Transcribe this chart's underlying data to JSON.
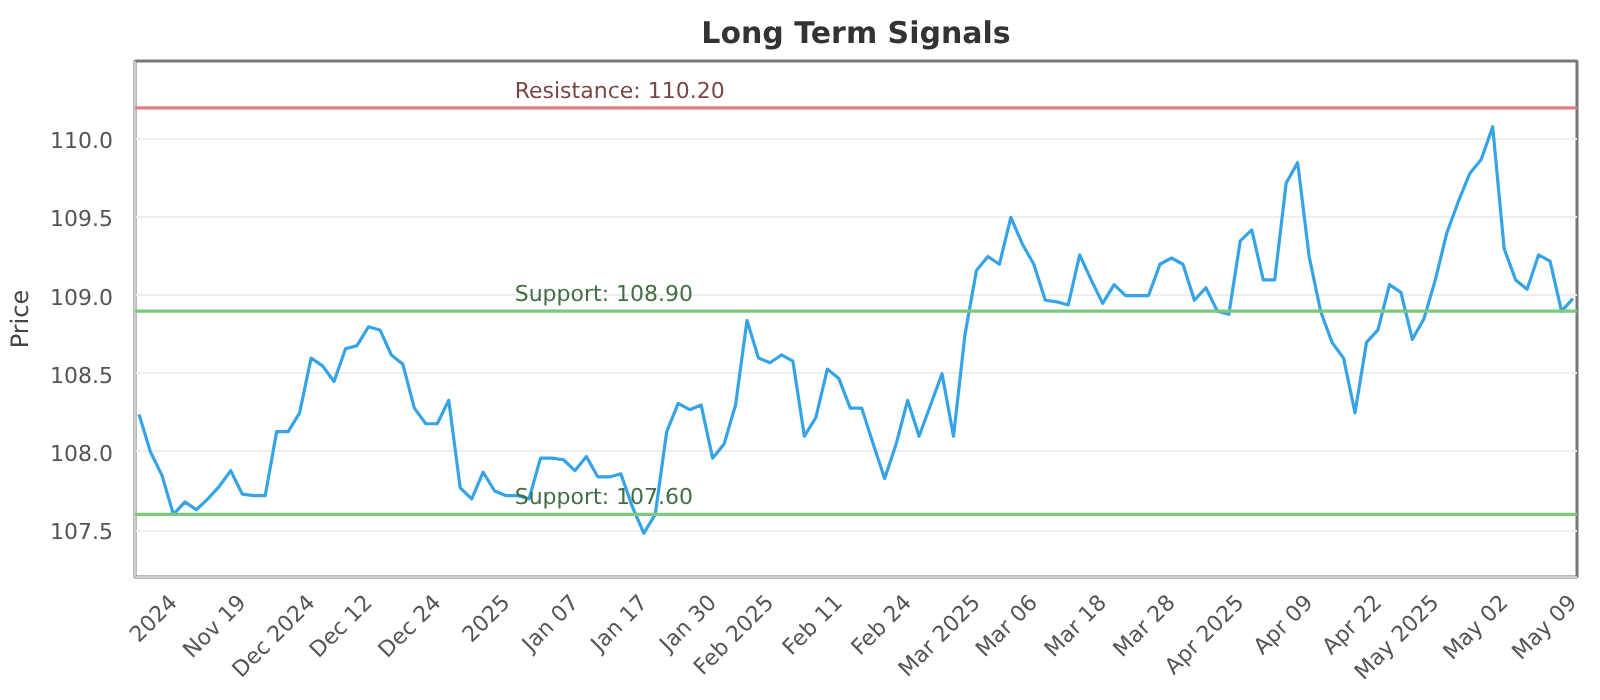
{
  "chart_data": {
    "type": "line",
    "title": "Long Term Signals",
    "ylabel": "Price",
    "categories": [
      null,
      null,
      null,
      "2024",
      null,
      null,
      null,
      null,
      null,
      "Nov 19",
      null,
      null,
      null,
      null,
      null,
      "Dec 2024",
      null,
      null,
      null,
      null,
      "Dec 12",
      null,
      null,
      null,
      null,
      null,
      "Dec 24",
      null,
      null,
      null,
      null,
      null,
      "2025",
      null,
      null,
      null,
      null,
      null,
      "Jan 07",
      null,
      null,
      null,
      null,
      null,
      "Jan 17",
      null,
      null,
      null,
      null,
      null,
      "Jan 30",
      null,
      null,
      null,
      null,
      "Feb 2025",
      null,
      null,
      null,
      null,
      null,
      "Feb 11",
      null,
      null,
      null,
      null,
      null,
      "Feb 24",
      null,
      null,
      null,
      null,
      null,
      "Mar 2025",
      null,
      null,
      null,
      null,
      "Mar 06",
      null,
      null,
      null,
      null,
      null,
      "Mar 18",
      null,
      null,
      null,
      null,
      null,
      "Mar 28",
      null,
      null,
      null,
      null,
      null,
      "Apr 2025",
      null,
      null,
      null,
      null,
      null,
      "Apr 09",
      null,
      null,
      null,
      null,
      null,
      "Apr 22",
      null,
      null,
      null,
      null,
      "May 2025",
      null,
      null,
      null,
      null,
      null,
      "May 02",
      null,
      null,
      null,
      null,
      null,
      "May 09"
    ],
    "series": [
      {
        "color": "#35a3e6",
        "values": [
          108.24,
          108.0,
          107.85,
          107.6,
          107.68,
          107.63,
          107.7,
          107.78,
          107.88,
          107.73,
          107.72,
          107.72,
          108.13,
          108.13,
          108.25,
          108.6,
          108.55,
          108.45,
          108.66,
          108.68,
          108.8,
          108.78,
          108.62,
          108.56,
          108.28,
          108.18,
          108.18,
          108.33,
          107.77,
          107.7,
          107.87,
          107.75,
          107.72,
          107.72,
          107.7,
          107.96,
          107.96,
          107.95,
          107.88,
          107.97,
          107.84,
          107.84,
          107.86,
          107.65,
          107.48,
          107.6,
          108.13,
          108.31,
          108.27,
          108.3,
          107.96,
          108.05,
          108.3,
          108.84,
          108.6,
          108.57,
          108.62,
          108.58,
          108.1,
          108.22,
          108.53,
          108.47,
          108.28,
          108.28,
          108.05,
          107.83,
          108.05,
          108.33,
          108.1,
          108.3,
          108.5,
          108.1,
          108.75,
          109.16,
          109.25,
          109.2,
          109.5,
          109.33,
          109.2,
          108.97,
          108.96,
          108.94,
          109.26,
          109.1,
          108.95,
          109.07,
          109.0,
          109.0,
          109.0,
          109.2,
          109.24,
          109.2,
          108.97,
          109.05,
          108.9,
          108.88,
          109.35,
          109.42,
          109.1,
          109.1,
          109.72,
          109.85,
          109.25,
          108.9,
          108.7,
          108.6,
          108.25,
          108.7,
          108.78,
          109.07,
          109.02,
          108.72,
          108.85,
          109.1,
          109.4,
          109.6,
          109.78,
          109.87,
          110.08,
          109.3,
          109.1,
          109.04,
          109.26,
          109.22,
          108.9,
          108.98
        ]
      }
    ],
    "ylim": [
      107.2,
      110.5
    ],
    "yticks": [
      107.5,
      {
        "value": 108,
        "label": "108.0"
      },
      108.5,
      {
        "value": 109,
        "label": "109.0"
      },
      109.5,
      {
        "value": 110,
        "label": "110.0"
      }
    ],
    "ref_lines": [
      {
        "axis": "y",
        "value": 110.2,
        "label": "Resistance: 110.20",
        "color": "#e08080"
      },
      {
        "axis": "y",
        "value": 108.9,
        "label": "Support: 108.90",
        "color": "#7cc87c"
      },
      {
        "axis": "y",
        "value": 107.6,
        "label": "Support: 107.60",
        "color": "#7cc87c"
      }
    ],
    "grid": "y",
    "marker": "none",
    "line_style": "solid"
  }
}
